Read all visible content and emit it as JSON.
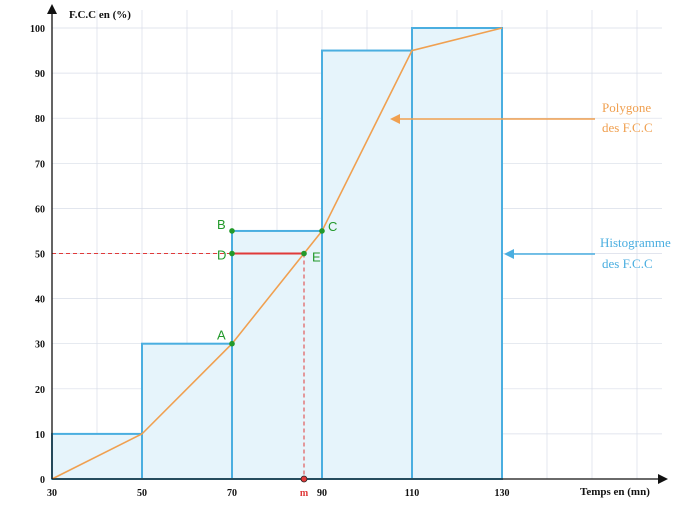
{
  "chart_data": {
    "type": "bar",
    "ylabel": "F.C.C en (%)",
    "xlabel": "Temps en (mn)",
    "x_ticks": [
      30,
      50,
      70,
      90,
      110,
      130
    ],
    "y_ticks": [
      0,
      10,
      20,
      30,
      40,
      50,
      60,
      70,
      80,
      90,
      100
    ],
    "xlim": [
      30,
      160
    ],
    "ylim": [
      0,
      105
    ],
    "grid": true,
    "histogram": {
      "name_line1": "Histogramme",
      "name_line2": "des F.C.C",
      "bins": [
        {
          "from": 30,
          "to": 50,
          "value": 10
        },
        {
          "from": 50,
          "to": 70,
          "value": 30
        },
        {
          "from": 70,
          "to": 90,
          "value": 55
        },
        {
          "from": 90,
          "to": 110,
          "value": 95
        },
        {
          "from": 110,
          "to": 130,
          "value": 100
        }
      ]
    },
    "polygon": {
      "name_line1": "Polygone",
      "name_line2": "des F.C.C",
      "x": [
        30,
        50,
        70,
        90,
        110,
        130
      ],
      "y": [
        0,
        10,
        30,
        55,
        95,
        100
      ]
    },
    "points": [
      {
        "label": "A",
        "x": 70,
        "y": 30
      },
      {
        "label": "B",
        "x": 70,
        "y": 55
      },
      {
        "label": "C",
        "x": 90,
        "y": 55
      },
      {
        "label": "D",
        "x": 70,
        "y": 50
      },
      {
        "label": "E",
        "x": 86,
        "y": 50
      }
    ],
    "median": {
      "label": "m",
      "x": 86,
      "y": 50
    }
  },
  "colors": {
    "histogram": "#4aaee0",
    "histogram_fill": "#e6f4fb",
    "polygon": "#f0a050",
    "points": "#22992a",
    "median": "#e03a3a",
    "axis": "#111111",
    "grid": "#d8dde8"
  }
}
